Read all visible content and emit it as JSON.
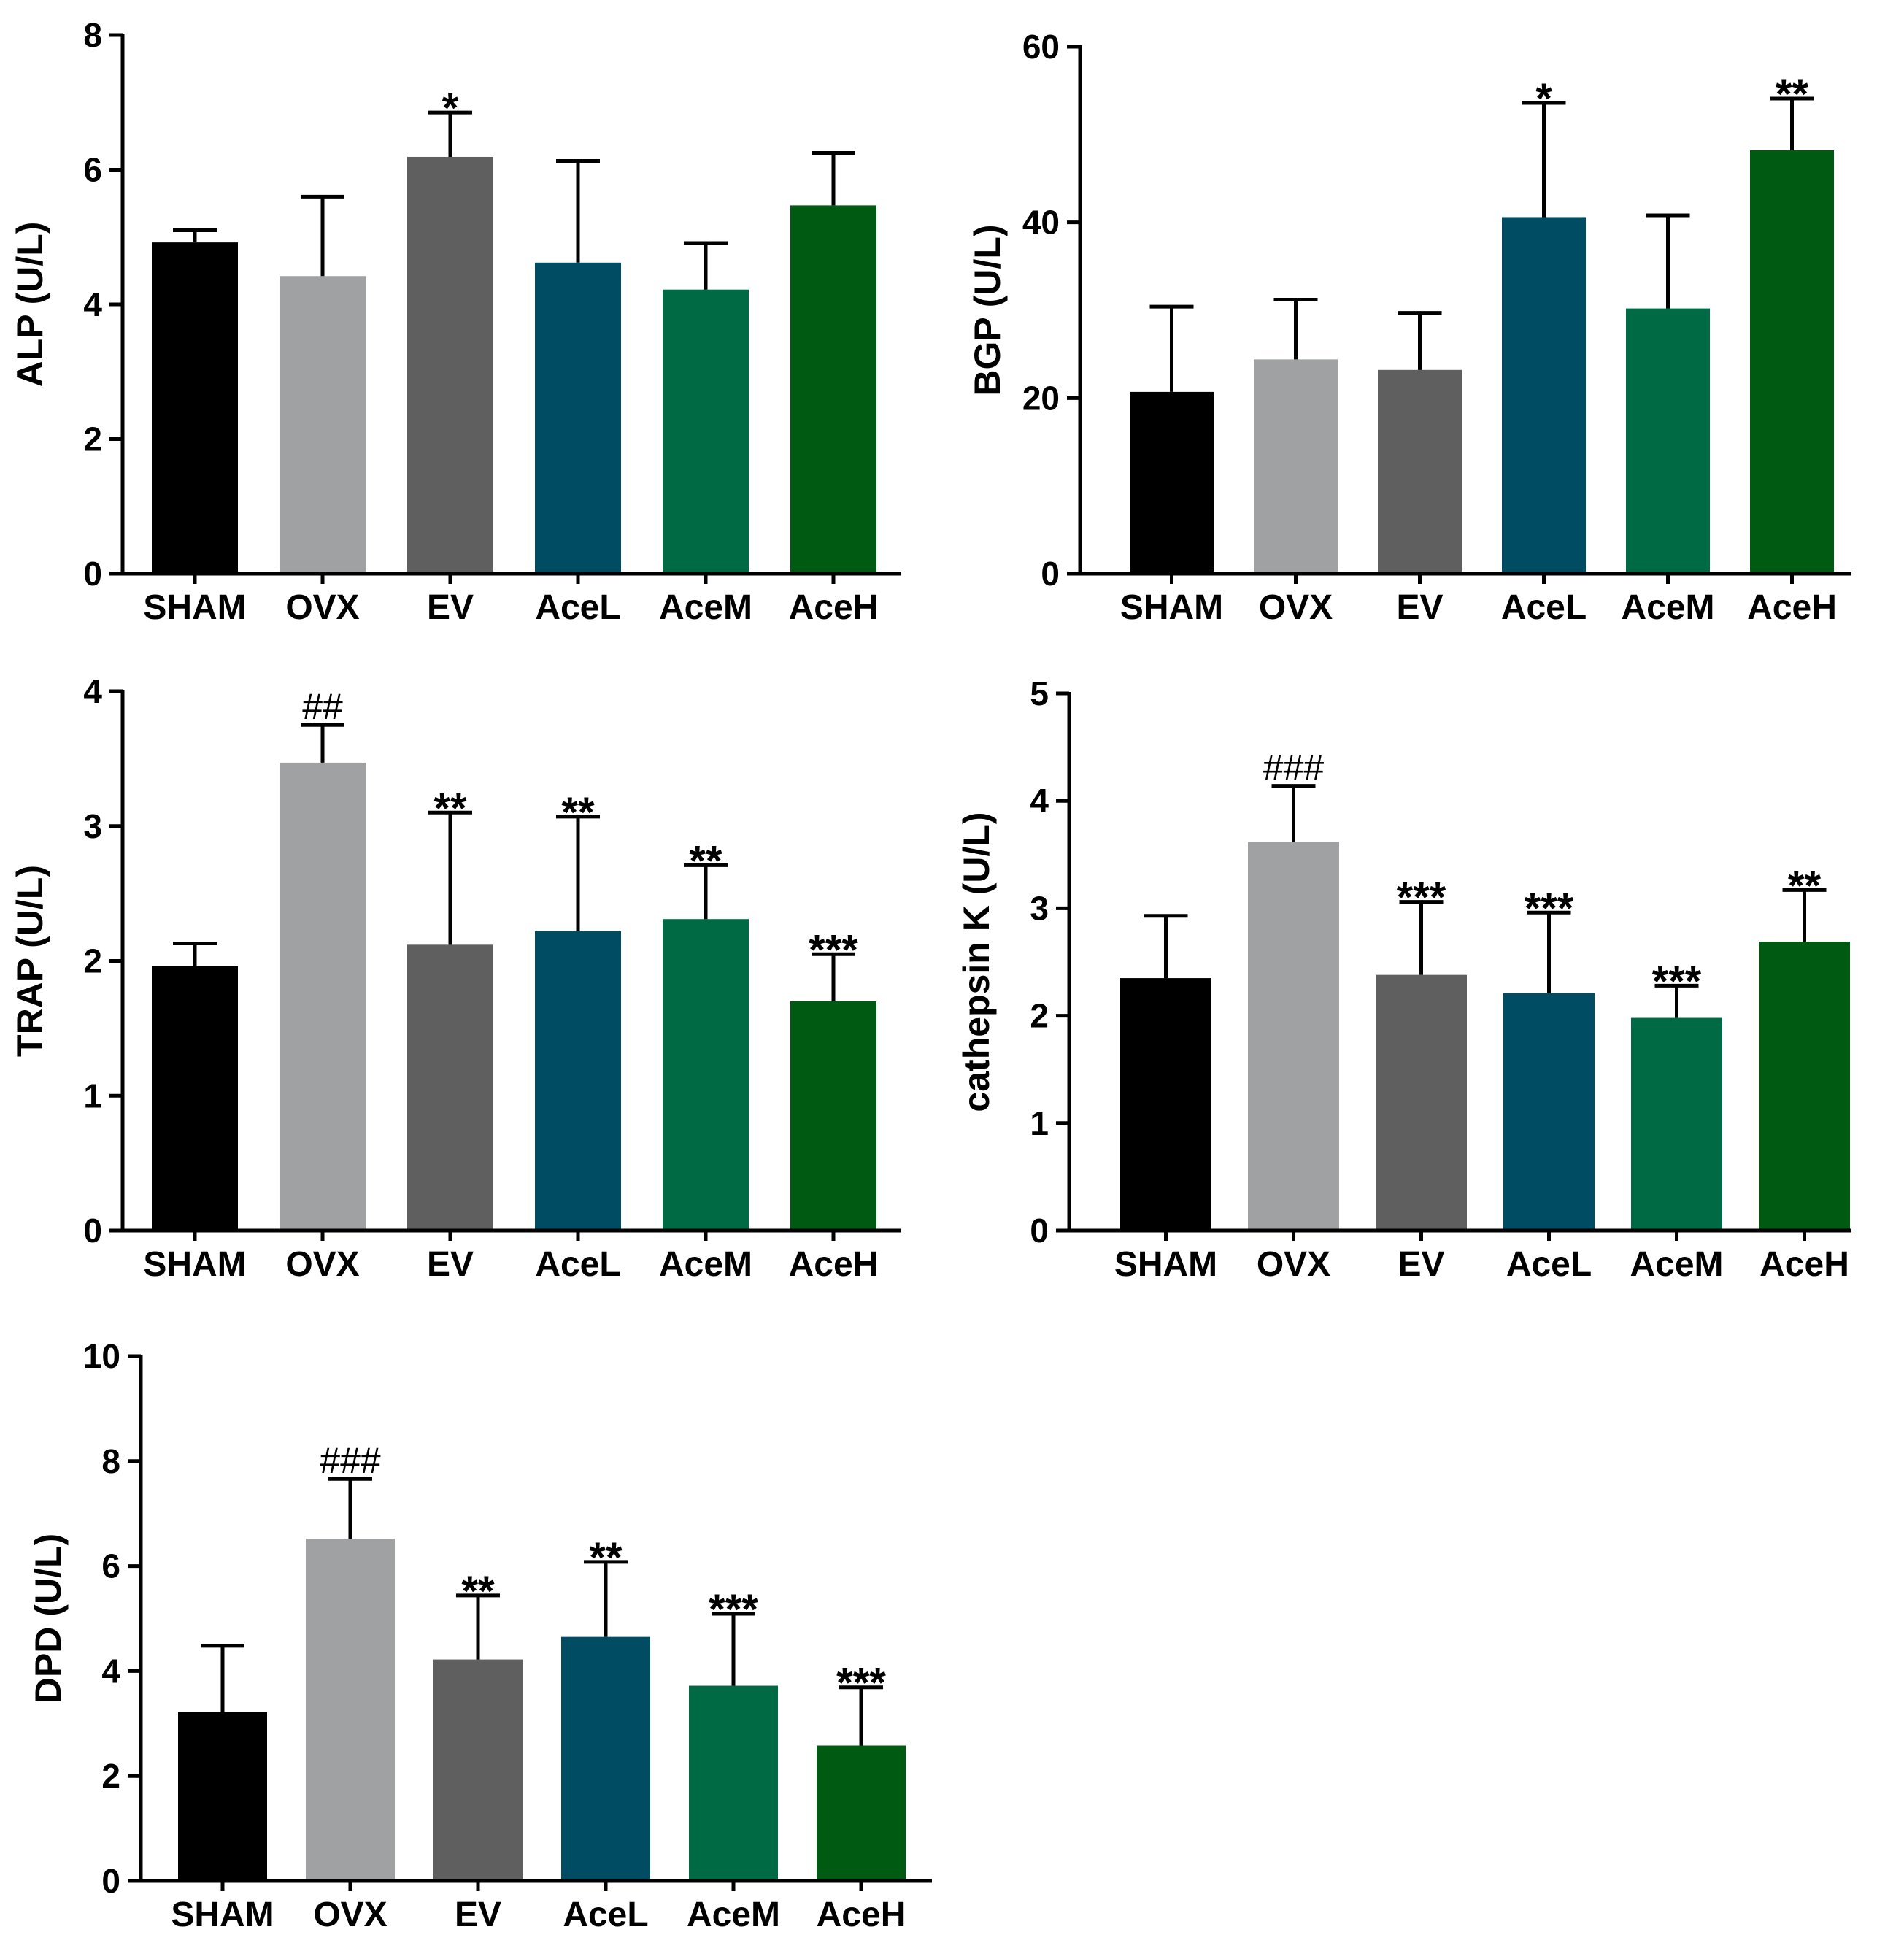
{
  "chart_data": [
    {
      "id": "alp",
      "type": "bar",
      "ylabel": "ALP (U/L)",
      "ylim": [
        0,
        8
      ],
      "yticks": [
        0,
        2,
        4,
        6,
        8
      ],
      "categories": [
        "SHAM",
        "OVX",
        "EV",
        "AceL",
        "AceM",
        "AceH"
      ],
      "colors": [
        "#000000",
        "#a0a1a3",
        "#5f5f5f",
        "#004c63",
        "#006a45",
        "#005a12"
      ],
      "values": [
        4.92,
        4.42,
        6.19,
        4.62,
        4.22,
        5.47
      ],
      "errors": [
        0.18,
        1.18,
        0.66,
        1.51,
        0.69,
        0.78
      ],
      "annotations": [
        "",
        "",
        "*",
        "",
        "",
        ""
      ]
    },
    {
      "id": "bgp",
      "type": "bar",
      "ylabel": "BGP (U/L)",
      "ylim": [
        0,
        60
      ],
      "yticks": [
        0,
        20,
        40,
        60
      ],
      "categories": [
        "SHAM",
        "OVX",
        "EV",
        "AceL",
        "AceM",
        "AceH"
      ],
      "colors": [
        "#000000",
        "#a0a1a3",
        "#5f5f5f",
        "#004c63",
        "#006a45",
        "#005a12"
      ],
      "values": [
        20.7,
        24.4,
        23.2,
        40.6,
        30.2,
        48.2
      ],
      "errors": [
        9.7,
        6.8,
        6.5,
        13.0,
        10.6,
        5.9
      ],
      "annotations": [
        "",
        "",
        "",
        "*",
        "",
        "**"
      ]
    },
    {
      "id": "trap",
      "type": "bar",
      "ylabel": "TRAP (U/L)",
      "ylim": [
        0,
        4
      ],
      "yticks": [
        0,
        1,
        2,
        3,
        4
      ],
      "categories": [
        "SHAM",
        "OVX",
        "EV",
        "AceL",
        "AceM",
        "AceH"
      ],
      "colors": [
        "#000000",
        "#a0a1a3",
        "#5f5f5f",
        "#004c63",
        "#006a45",
        "#005a12"
      ],
      "values": [
        1.96,
        3.47,
        2.12,
        2.22,
        2.31,
        1.7
      ],
      "errors": [
        0.17,
        0.28,
        0.98,
        0.85,
        0.4,
        0.35
      ],
      "annotations": [
        "",
        "##",
        "**",
        "**",
        "**",
        "***"
      ]
    },
    {
      "id": "cathepsin",
      "type": "bar",
      "ylabel": "cathepsin K (U/L)",
      "ylim": [
        0,
        5
      ],
      "yticks": [
        0,
        1,
        2,
        3,
        4,
        5
      ],
      "categories": [
        "SHAM",
        "OVX",
        "EV",
        "AceL",
        "AceM",
        "AceH"
      ],
      "colors": [
        "#000000",
        "#a0a1a3",
        "#5f5f5f",
        "#004c63",
        "#006a45",
        "#005a12"
      ],
      "values": [
        2.35,
        3.62,
        2.38,
        2.21,
        1.98,
        2.69
      ],
      "errors": [
        0.58,
        0.52,
        0.68,
        0.75,
        0.3,
        0.48
      ],
      "annotations": [
        "",
        "###",
        "***",
        "***",
        "***",
        "**"
      ]
    },
    {
      "id": "dpd",
      "type": "bar",
      "ylabel": "DPD (U/L)",
      "ylim": [
        0,
        10
      ],
      "yticks": [
        0,
        2,
        4,
        6,
        8,
        10
      ],
      "categories": [
        "SHAM",
        "OVX",
        "EV",
        "AceL",
        "AceM",
        "AceH"
      ],
      "colors": [
        "#000000",
        "#a0a1a3",
        "#5f5f5f",
        "#004c63",
        "#006a45",
        "#005a12"
      ],
      "values": [
        3.22,
        6.52,
        4.22,
        4.65,
        3.72,
        2.58
      ],
      "errors": [
        1.26,
        1.14,
        1.22,
        1.43,
        1.37,
        1.11
      ],
      "annotations": [
        "",
        "###",
        "**",
        "**",
        "***",
        "***"
      ]
    }
  ]
}
